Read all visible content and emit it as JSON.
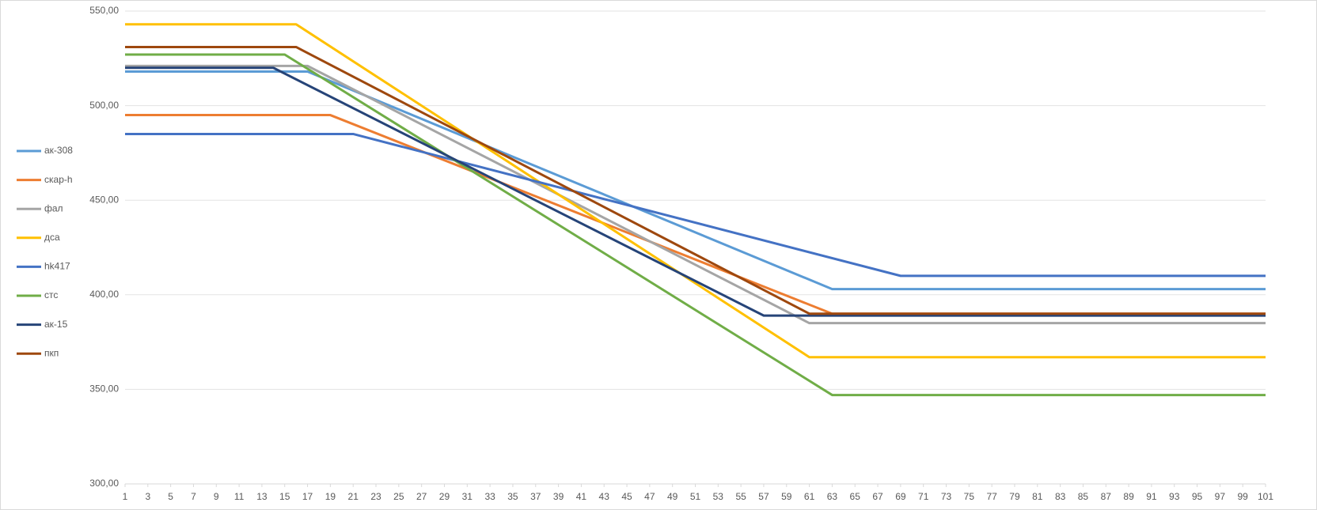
{
  "chart_data": {
    "type": "line",
    "xlim": [
      1,
      101
    ],
    "xticks": [
      1,
      3,
      5,
      7,
      9,
      11,
      13,
      15,
      17,
      19,
      21,
      23,
      25,
      27,
      29,
      31,
      33,
      35,
      37,
      39,
      41,
      43,
      45,
      47,
      49,
      51,
      53,
      55,
      57,
      59,
      61,
      63,
      65,
      67,
      69,
      71,
      73,
      75,
      77,
      79,
      81,
      83,
      85,
      87,
      89,
      91,
      93,
      95,
      97,
      99,
      101
    ],
    "ylim": [
      300,
      550
    ],
    "yticks": [
      {
        "value": 300,
        "label": "300,00"
      },
      {
        "value": 350,
        "label": "350,00"
      },
      {
        "value": 400,
        "label": "400,00"
      },
      {
        "value": 450,
        "label": "450,00"
      },
      {
        "value": 500,
        "label": "500,00"
      },
      {
        "value": 550,
        "label": "550,00"
      }
    ],
    "grid": true,
    "legend": "left",
    "series": [
      {
        "name": "ак-308",
        "color": "#5b9bd5",
        "x": [
          1,
          17,
          63,
          101
        ],
        "values": [
          518,
          518,
          403,
          403
        ]
      },
      {
        "name": "скар-h",
        "color": "#ed7d31",
        "x": [
          1,
          19,
          63,
          101
        ],
        "values": [
          495,
          495,
          390,
          390
        ]
      },
      {
        "name": "фал",
        "color": "#a5a5a5",
        "x": [
          1,
          17,
          61,
          101
        ],
        "values": [
          521,
          521,
          385,
          385
        ]
      },
      {
        "name": "дса",
        "color": "#ffc000",
        "x": [
          1,
          16,
          61,
          101
        ],
        "values": [
          543,
          543,
          367,
          367
        ]
      },
      {
        "name": "hk417",
        "color": "#4472c4",
        "x": [
          1,
          21,
          69,
          101
        ],
        "values": [
          485,
          485,
          410,
          410
        ]
      },
      {
        "name": "стс",
        "color": "#70ad47",
        "x": [
          1,
          15,
          63,
          101
        ],
        "values": [
          527,
          527,
          347,
          347
        ]
      },
      {
        "name": "ак-15",
        "color": "#264478",
        "x": [
          1,
          14,
          57,
          101
        ],
        "values": [
          520,
          520,
          389,
          389
        ]
      },
      {
        "name": "пкп",
        "color": "#9e480e",
        "x": [
          1,
          16,
          61,
          101
        ],
        "values": [
          531,
          531,
          390,
          390
        ]
      }
    ]
  }
}
